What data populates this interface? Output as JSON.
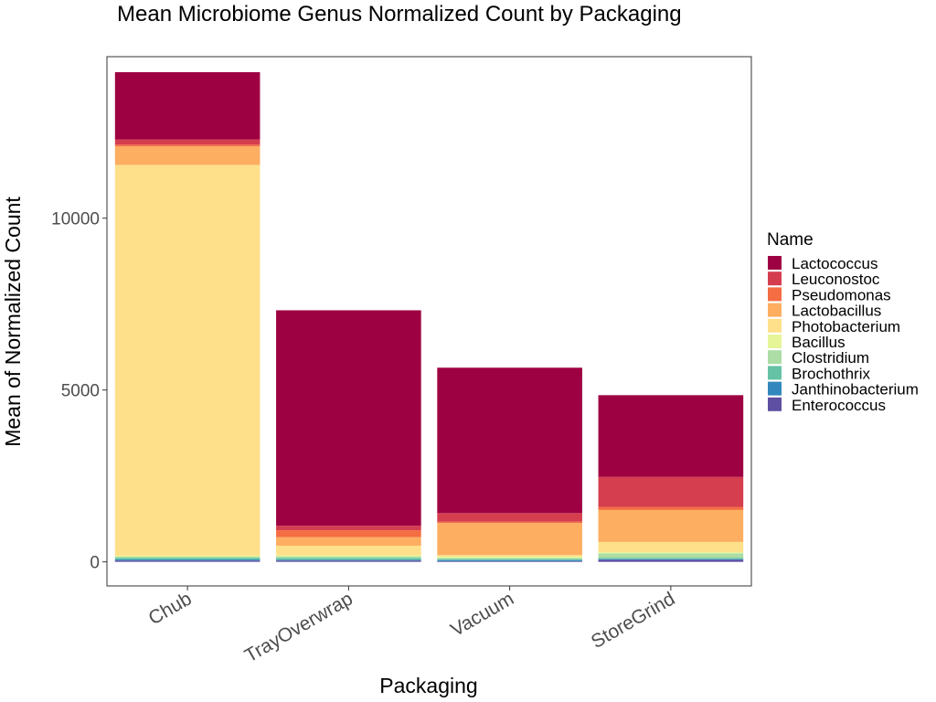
{
  "chart_data": {
    "type": "bar",
    "stacked": true,
    "title": "Mean Microbiome Genus Normalized Count by Packaging",
    "xlabel": "Packaging",
    "ylabel": "Mean of Normalized Count",
    "ylim": [
      -700,
      14700
    ],
    "yticks": [
      0,
      5000,
      10000
    ],
    "ytick_labels": [
      "0",
      "5000",
      "10000"
    ],
    "categories": [
      "Chub",
      "TrayOverwrap",
      "Vacuum",
      "StoreGrind"
    ],
    "legend_title": "Name",
    "legend_position": "right",
    "grid": false,
    "series": [
      {
        "name": "Enterococcus",
        "color": "#5E4FA2",
        "values": [
          40,
          40,
          20,
          60
        ]
      },
      {
        "name": "Janthinobacterium",
        "color": "#3288BD",
        "values": [
          30,
          20,
          30,
          20
        ]
      },
      {
        "name": "Brochothrix",
        "color": "#66C2A5",
        "values": [
          50,
          50,
          40,
          40
        ]
      },
      {
        "name": "Clostridium",
        "color": "#ABDDA4",
        "values": [
          30,
          50,
          20,
          130
        ]
      },
      {
        "name": "Bacillus",
        "color": "#E6F598",
        "values": [
          30,
          30,
          40,
          30
        ]
      },
      {
        "name": "Photobacterium",
        "color": "#FEE08B",
        "values": [
          11370,
          280,
          50,
          300
        ]
      },
      {
        "name": "Lactobacillus",
        "color": "#FDAE61",
        "values": [
          540,
          250,
          930,
          930
        ]
      },
      {
        "name": "Pseudomonas",
        "color": "#F46D43",
        "values": [
          50,
          200,
          40,
          90
        ]
      },
      {
        "name": "Leuconostoc",
        "color": "#D53E4F",
        "values": [
          150,
          130,
          250,
          870
        ]
      },
      {
        "name": "Lactococcus",
        "color": "#9E0142",
        "values": [
          1960,
          6270,
          4230,
          2380
        ]
      }
    ]
  }
}
